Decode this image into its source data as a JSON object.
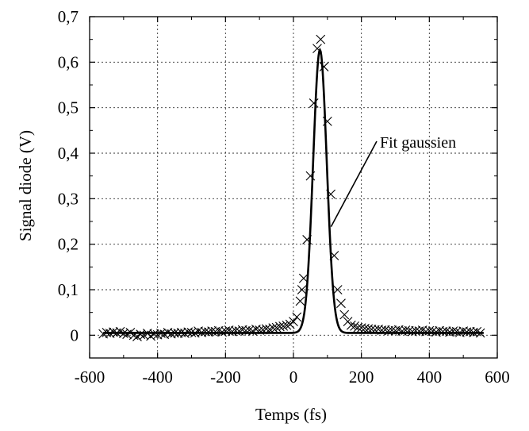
{
  "chart_data": {
    "type": "scatter",
    "title": "",
    "xlabel": "Temps (fs)",
    "ylabel": "Signal diode (V)",
    "xlim": [
      -600,
      600
    ],
    "ylim": [
      -0.05,
      0.7
    ],
    "x_ticks": [
      -600,
      -400,
      -200,
      0,
      200,
      400,
      600
    ],
    "x_tick_labels": [
      "-600",
      "-400",
      "-200",
      "0",
      "200",
      "400",
      "600"
    ],
    "y_ticks": [
      0,
      0.1,
      0.2,
      0.3,
      0.4,
      0.5,
      0.6,
      0.7
    ],
    "y_tick_labels": [
      "0",
      "0,1",
      "0,2",
      "0,3",
      "0,4",
      "0,5",
      "0,6",
      "0,7"
    ],
    "grid": true,
    "annotation": "Fit gaussien",
    "series": [
      {
        "marker": "x",
        "description": "measured points",
        "x": [
          -560,
          -550,
          -540,
          -530,
          -520,
          -510,
          -500,
          -490,
          -480,
          -470,
          -460,
          -450,
          -440,
          -430,
          -420,
          -410,
          -400,
          -390,
          -380,
          -370,
          -360,
          -350,
          -340,
          -330,
          -320,
          -310,
          -300,
          -290,
          -280,
          -270,
          -260,
          -250,
          -240,
          -230,
          -220,
          -210,
          -200,
          -190,
          -180,
          -170,
          -160,
          -150,
          -140,
          -130,
          -120,
          -110,
          -100,
          -90,
          -80,
          -70,
          -60,
          -50,
          -40,
          -30,
          -20,
          -10,
          0,
          10,
          20,
          25,
          30,
          40,
          50,
          60,
          70,
          80,
          90,
          100,
          110,
          120,
          130,
          140,
          150,
          160,
          170,
          180,
          190,
          200,
          210,
          220,
          230,
          240,
          250,
          260,
          270,
          280,
          290,
          300,
          310,
          320,
          330,
          340,
          350,
          360,
          370,
          380,
          390,
          400,
          410,
          420,
          430,
          440,
          450,
          460,
          470,
          480,
          490,
          500,
          510,
          520,
          530,
          540,
          550
        ],
        "y": [
          0.003,
          0.006,
          0.004,
          0.007,
          0.005,
          0.008,
          0.004,
          0.002,
          0.006,
          0.0,
          -0.003,
          0.002,
          0.0,
          0.004,
          -0.002,
          0.003,
          0.001,
          0.004,
          0.002,
          0.006,
          0.003,
          0.005,
          0.004,
          0.006,
          0.004,
          0.007,
          0.006,
          0.005,
          0.009,
          0.006,
          0.008,
          0.007,
          0.009,
          0.008,
          0.01,
          0.007,
          0.009,
          0.011,
          0.008,
          0.01,
          0.009,
          0.012,
          0.01,
          0.011,
          0.009,
          0.013,
          0.011,
          0.012,
          0.014,
          0.013,
          0.016,
          0.017,
          0.019,
          0.02,
          0.022,
          0.024,
          0.03,
          0.04,
          0.075,
          0.1,
          0.125,
          0.21,
          0.35,
          0.51,
          0.63,
          0.65,
          0.59,
          0.47,
          0.31,
          0.175,
          0.1,
          0.07,
          0.045,
          0.03,
          0.022,
          0.02,
          0.017,
          0.016,
          0.015,
          0.014,
          0.013,
          0.012,
          0.013,
          0.011,
          0.012,
          0.01,
          0.011,
          0.01,
          0.012,
          0.009,
          0.011,
          0.01,
          0.008,
          0.01,
          0.009,
          0.011,
          0.008,
          0.01,
          0.009,
          0.007,
          0.01,
          0.008,
          0.009,
          0.007,
          0.009,
          0.008,
          0.006,
          0.009,
          0.007,
          0.008,
          0.006,
          0.008,
          0.005
        ]
      },
      {
        "style": "line",
        "description": "gaussian fit",
        "center": 78,
        "amplitude": 0.622,
        "sigma": 20,
        "baseline": 0.005,
        "x_range": [
          -560,
          560
        ]
      }
    ]
  }
}
